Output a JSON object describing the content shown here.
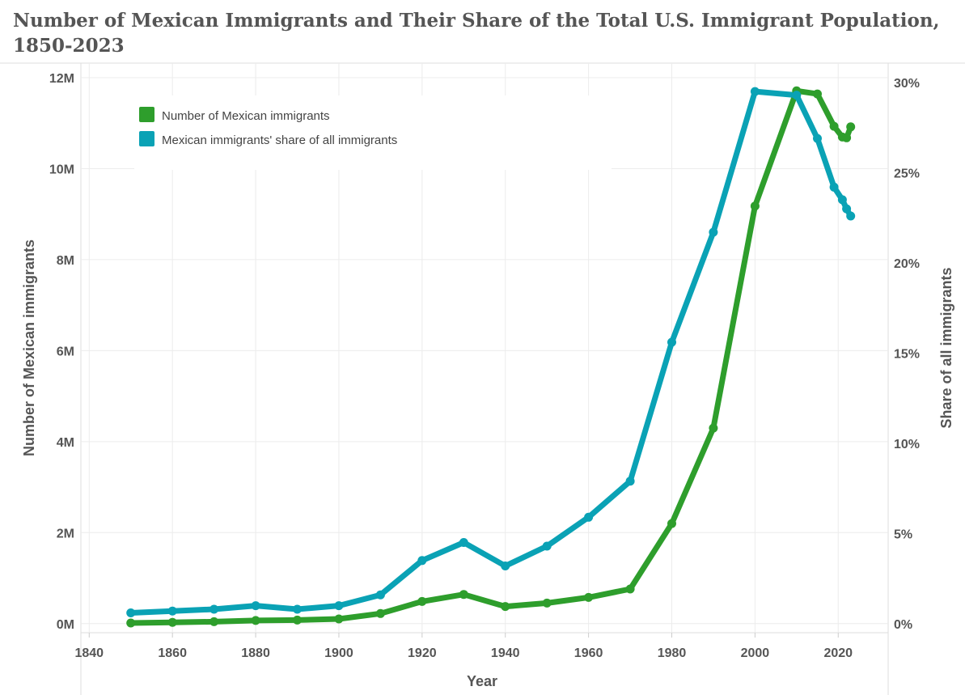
{
  "chart_data": {
    "type": "line",
    "title": "Number of Mexican Immigrants and Their Share of the Total U.S. Immigrant Population, 1850-2023",
    "xlabel": "Year",
    "ylabel_left": "Number of Mexican immigrants",
    "ylabel_right": "Share of all immigrants",
    "xlim": [
      1838,
      2032
    ],
    "ylim_left": [
      -200000,
      12000000
    ],
    "ylim_right": [
      -0.5,
      30
    ],
    "x_ticks": [
      1840,
      1860,
      1880,
      1900,
      1920,
      1940,
      1960,
      1980,
      2000,
      2020
    ],
    "y_ticks_left": [
      0,
      2000000,
      4000000,
      6000000,
      8000000,
      10000000,
      12000000
    ],
    "y_tick_labels_left": [
      "0M",
      "2M",
      "4M",
      "6M",
      "8M",
      "10M",
      "12M"
    ],
    "y_ticks_right": [
      0,
      5,
      10,
      15,
      20,
      25,
      30
    ],
    "y_tick_labels_right": [
      "0%",
      "5%",
      "10%",
      "15%",
      "20%",
      "25%",
      "30%"
    ],
    "grid": true,
    "legend_position": "top-left",
    "series": [
      {
        "name": "Number of Mexican immigrants",
        "axis": "left",
        "color": "#2e9e2c",
        "x": [
          1850,
          1860,
          1870,
          1880,
          1890,
          1900,
          1910,
          1920,
          1930,
          1940,
          1950,
          1960,
          1970,
          1980,
          1990,
          2000,
          2010,
          2015,
          2019,
          2021,
          2022,
          2023
        ],
        "values": [
          13000,
          27000,
          42000,
          68000,
          78000,
          103000,
          222000,
          486000,
          641000,
          377000,
          451000,
          576000,
          760000,
          2199000,
          4298000,
          9177000,
          11711000,
          11643000,
          10932000,
          10694000,
          10679000,
          10919000
        ]
      },
      {
        "name": "Mexican immigrants' share of all immigrants",
        "axis": "right",
        "color": "#0aa2b5",
        "x": [
          1850,
          1860,
          1870,
          1880,
          1890,
          1900,
          1910,
          1920,
          1930,
          1940,
          1950,
          1960,
          1970,
          1980,
          1990,
          2000,
          2010,
          2015,
          2019,
          2021,
          2022,
          2023
        ],
        "values": [
          0.6,
          0.7,
          0.8,
          1.0,
          0.8,
          1.0,
          1.6,
          3.5,
          4.5,
          3.2,
          4.3,
          5.9,
          7.9,
          15.6,
          21.7,
          29.5,
          29.3,
          26.9,
          24.2,
          23.5,
          23.0,
          22.6
        ]
      }
    ]
  }
}
